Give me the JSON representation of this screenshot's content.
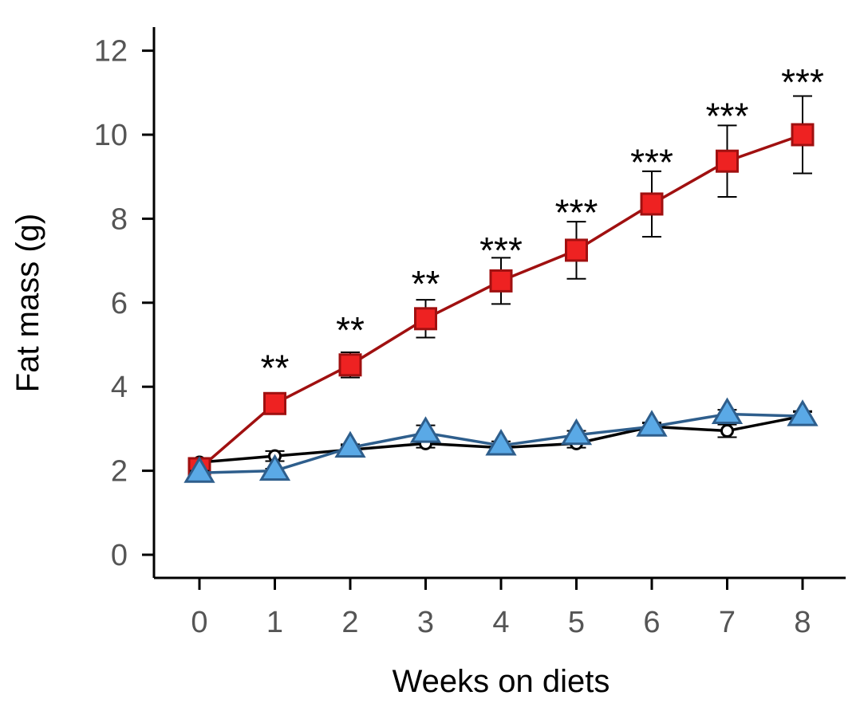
{
  "chart_data": {
    "type": "line",
    "title": "",
    "xlabel": "Weeks on diets",
    "ylabel": "Fat mass (g)",
    "xlim": [
      0,
      8
    ],
    "ylim": [
      0,
      12
    ],
    "x_ticks": [
      "0",
      "1",
      "2",
      "3",
      "4",
      "5",
      "6",
      "7",
      "8"
    ],
    "y_ticks": [
      "0",
      "2",
      "4",
      "6",
      "8",
      "10",
      "12"
    ],
    "grid": false,
    "legend": "none",
    "x": [
      0,
      1,
      2,
      3,
      4,
      5,
      6,
      7,
      8
    ],
    "series": [
      {
        "marker": "circle",
        "color": "#000000",
        "fill": "#ffffff",
        "values": [
          2.2,
          2.35,
          2.5,
          2.65,
          2.55,
          2.65,
          3.05,
          2.95,
          3.3
        ],
        "error": [
          0.1,
          0.12,
          0.1,
          0.1,
          0.08,
          0.1,
          0.1,
          0.15,
          0.12
        ]
      },
      {
        "marker": "square",
        "color": "#a01010",
        "fill": "#ee2222",
        "values": [
          2.05,
          3.6,
          4.52,
          5.62,
          6.52,
          7.25,
          8.35,
          9.37,
          10.0
        ],
        "error": [
          0.12,
          0.22,
          0.3,
          0.45,
          0.55,
          0.68,
          0.78,
          0.85,
          0.92
        ]
      },
      {
        "marker": "triangle",
        "color": "#2e5e8c",
        "fill": "#5aa9e6",
        "values": [
          1.95,
          2.0,
          2.55,
          2.9,
          2.6,
          2.85,
          3.05,
          3.35,
          3.3
        ],
        "error": [
          0.05,
          0.05,
          0.08,
          0.18,
          0.1,
          0.1,
          0.08,
          0.1,
          0.1
        ]
      }
    ],
    "annotations": [
      {
        "x": 1,
        "y": 4.6,
        "text": "**"
      },
      {
        "x": 2,
        "y": 5.5,
        "text": "**"
      },
      {
        "x": 3,
        "y": 6.6,
        "text": "**"
      },
      {
        "x": 4,
        "y": 7.4,
        "text": "***"
      },
      {
        "x": 5,
        "y": 8.3,
        "text": "***"
      },
      {
        "x": 6,
        "y": 9.5,
        "text": "***"
      },
      {
        "x": 7,
        "y": 10.6,
        "text": "***"
      },
      {
        "x": 8,
        "y": 11.4,
        "text": "***"
      }
    ]
  }
}
